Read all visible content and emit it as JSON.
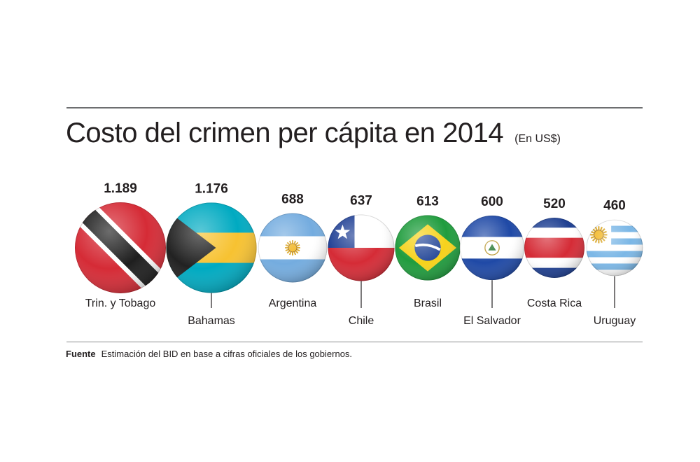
{
  "title": "Costo del crimen per cápita en 2014",
  "subtitle": "(En US$)",
  "source": {
    "label": "Fuente",
    "text": "Estimación del BID en base a cifras oficiales de los gobiernos."
  },
  "colors": {
    "text": "#231f20",
    "rule": "#6d6e70"
  },
  "chart_data": {
    "type": "bar",
    "categories": [
      "Trin. y Tobago",
      "Bahamas",
      "Argentina",
      "Chile",
      "Brasil",
      "El Salvador",
      "Costa Rica",
      "Uruguay"
    ],
    "values": [
      1189,
      1176,
      688,
      637,
      613,
      600,
      520,
      460
    ],
    "value_labels": [
      "1.189",
      "1.176",
      "688",
      "637",
      "613",
      "600",
      "520",
      "460"
    ],
    "flag_icons": [
      "trinidad-tobago-flag",
      "bahamas-flag",
      "argentina-flag",
      "chile-flag",
      "brazil-flag",
      "el-salvador-flag",
      "costa-rica-flag",
      "uruguay-flag"
    ],
    "title": "Costo del crimen per cápita en 2014",
    "ylabel": "(En US$)"
  }
}
